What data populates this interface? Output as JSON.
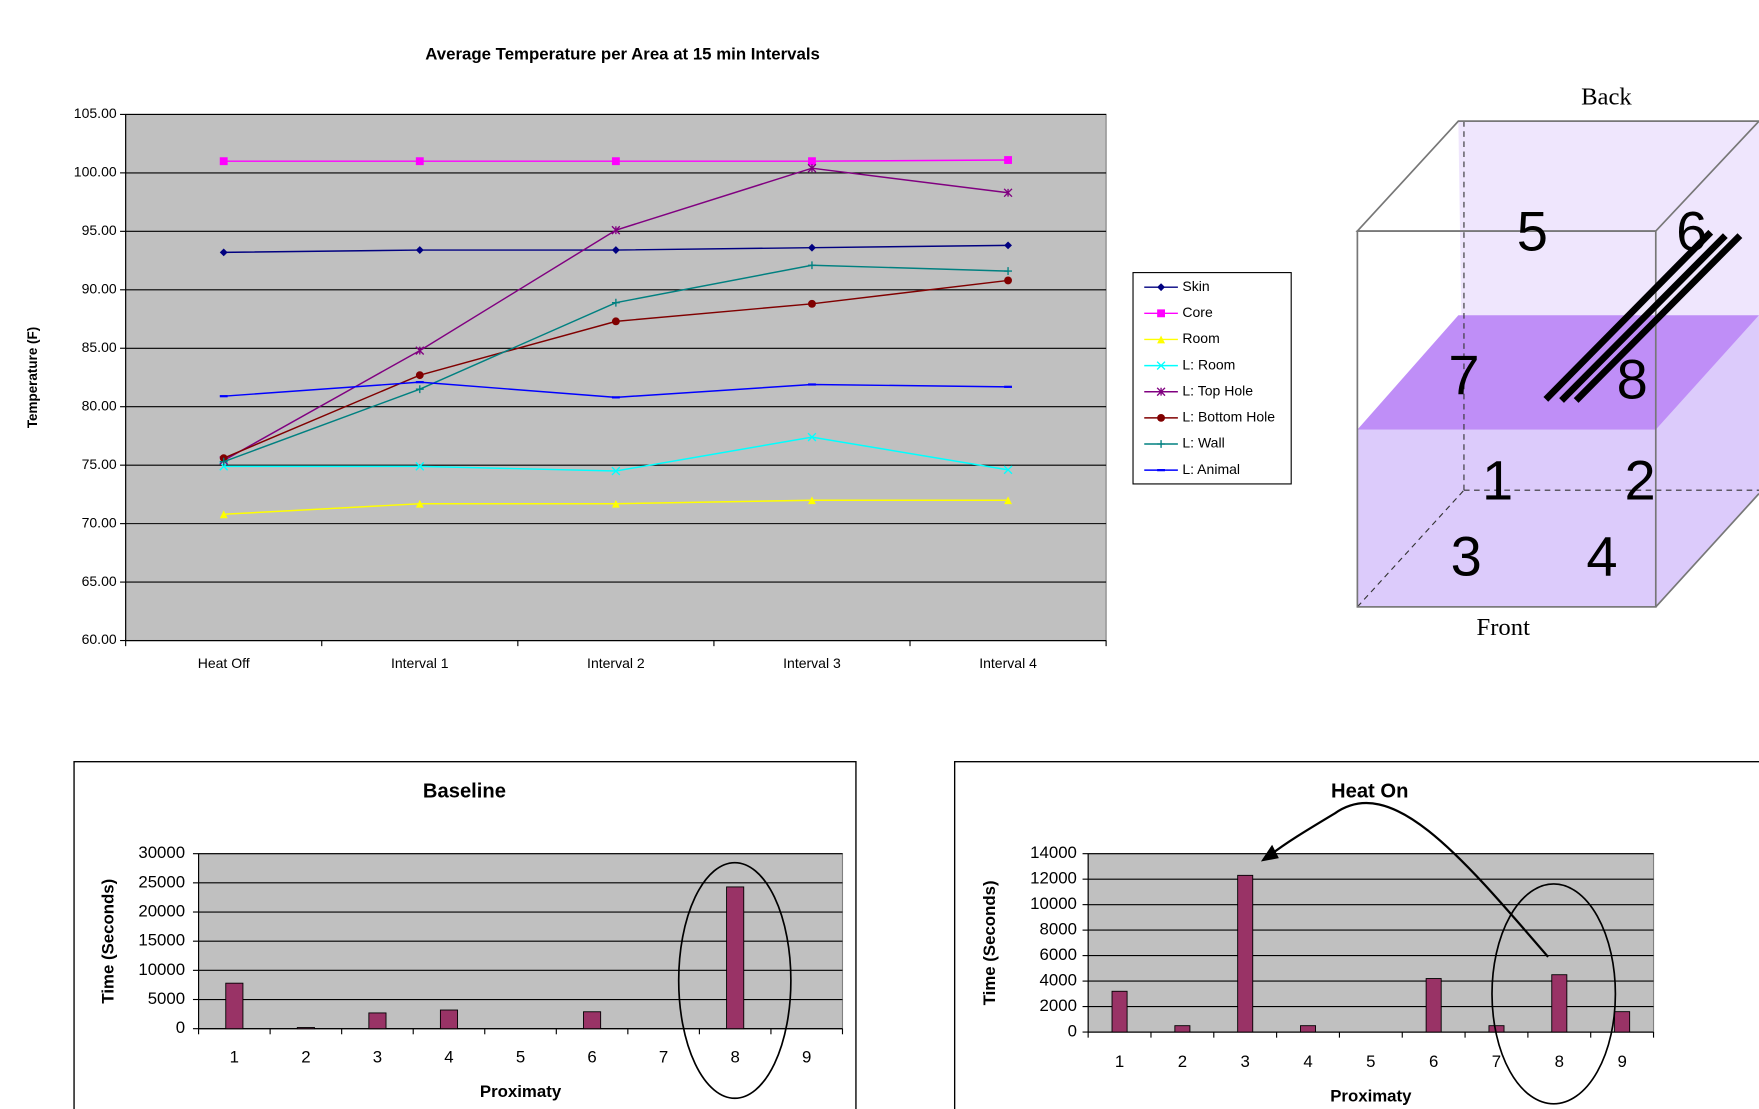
{
  "chart_data": [
    {
      "type": "line",
      "title": "Average Temperature per Area at 15 min Intervals",
      "y_label": "Temperature (F)",
      "categories": [
        "Heat Off",
        "Interval 1",
        "Interval 2",
        "Interval 3",
        "Interval 4"
      ],
      "ylim": [
        60,
        105
      ],
      "yticks": [
        {
          "value": 60,
          "label": "60.00"
        },
        {
          "value": 65,
          "label": "65.00"
        },
        {
          "value": 70,
          "label": "70.00"
        },
        {
          "value": 75,
          "label": "75.00"
        },
        {
          "value": 80,
          "label": "80.00"
        },
        {
          "value": 85,
          "label": "85.00"
        },
        {
          "value": 90,
          "label": "90.00"
        },
        {
          "value": 95,
          "label": "95.00"
        },
        {
          "value": 100,
          "label": "100.00"
        },
        {
          "value": 105,
          "label": "105.00"
        }
      ],
      "grid": true,
      "legend": "right",
      "series": [
        {
          "name": "Skin",
          "color": "#000080",
          "marker": "diamond",
          "values": [
            93.2,
            93.4,
            93.4,
            93.6,
            93.8
          ]
        },
        {
          "name": "Core",
          "color": "#ff00ff",
          "marker": "square",
          "values": [
            101.0,
            101.0,
            101.0,
            101.0,
            101.1
          ]
        },
        {
          "name": "Room",
          "color": "#ffff00",
          "marker": "triangle",
          "values": [
            70.8,
            71.7,
            71.7,
            72.0,
            72.0
          ]
        },
        {
          "name": "L: Room",
          "color": "#00ffff",
          "marker": "x",
          "values": [
            74.9,
            74.9,
            74.5,
            77.4,
            74.6
          ]
        },
        {
          "name": "L: Top Hole",
          "color": "#800080",
          "marker": "star",
          "values": [
            75.4,
            84.8,
            95.1,
            100.4,
            98.3
          ]
        },
        {
          "name": "L: Bottom Hole",
          "color": "#800000",
          "marker": "circle",
          "values": [
            75.6,
            82.7,
            87.3,
            88.8,
            90.8
          ]
        },
        {
          "name": "L: Wall",
          "color": "#008080",
          "marker": "plus",
          "values": [
            75.3,
            81.5,
            88.9,
            92.1,
            91.6
          ]
        },
        {
          "name": "L: Animal",
          "color": "#0000ff",
          "marker": "dash",
          "values": [
            80.9,
            82.1,
            80.8,
            81.9,
            81.7
          ]
        }
      ]
    },
    {
      "type": "bar",
      "title": "Baseline",
      "x_label": "Proximaty",
      "y_label": "Time (Seconds)",
      "categories": [
        "1",
        "2",
        "3",
        "4",
        "5",
        "6",
        "7",
        "8",
        "9"
      ],
      "values": [
        7800,
        200,
        2700,
        3200,
        0,
        2900,
        0,
        24300,
        0
      ],
      "color": "#993366",
      "ylim": [
        0,
        30000
      ],
      "yticks": [
        0,
        5000,
        10000,
        15000,
        20000,
        25000,
        30000
      ],
      "grid": true
    },
    {
      "type": "bar",
      "title": "Heat On",
      "x_label": "Proximaty",
      "y_label": "Time (Seconds)",
      "categories": [
        "1",
        "2",
        "3",
        "4",
        "5",
        "6",
        "7",
        "8",
        "9"
      ],
      "values": [
        3200,
        500,
        12300,
        500,
        0,
        4200,
        500,
        4500,
        1600
      ],
      "color": "#993366",
      "ylim": [
        0,
        14000
      ],
      "yticks": [
        0,
        2000,
        4000,
        6000,
        8000,
        10000,
        12000,
        14000
      ],
      "grid": true
    }
  ],
  "diagram": {
    "back_label": "Back",
    "front_label": "Front",
    "zones": [
      "1",
      "2",
      "3",
      "4",
      "5",
      "6",
      "7",
      "8"
    ]
  }
}
